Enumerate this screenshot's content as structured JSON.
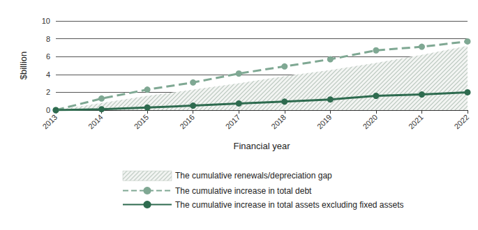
{
  "chart_data": {
    "type": "line",
    "x_label": "Financial year",
    "y_label": "$billion",
    "categories": [
      "2013",
      "2014",
      "2015",
      "2016",
      "2017",
      "2018",
      "2019",
      "2020",
      "2021",
      "2022"
    ],
    "ylim": [
      0,
      10
    ],
    "yticks": [
      0,
      2,
      4,
      6,
      8,
      10
    ],
    "grid": true,
    "legend": "bottom",
    "series": [
      {
        "name": "The cumulative renewals/depreciation gap",
        "type": "area",
        "color": "#b9c6bd",
        "marker": "none",
        "values": [
          0,
          0.8,
          1.6,
          2.3,
          3.0,
          3.8,
          4.5,
          5.3,
          6.2,
          7.2
        ]
      },
      {
        "name": "The cumulative increase in total debt",
        "type": "line",
        "color": "#7fa893",
        "marker": "circle",
        "line_style": "dashed",
        "values": [
          0,
          1.3,
          2.3,
          3.1,
          4.1,
          4.9,
          5.7,
          6.7,
          7.1,
          7.7
        ]
      },
      {
        "name": "The cumulative increase in total assets excluding fixed assets",
        "type": "line",
        "color": "#2e6b4f",
        "marker": "circle",
        "line_style": "solid",
        "values": [
          0,
          0.1,
          0.3,
          0.5,
          0.75,
          0.95,
          1.2,
          1.6,
          1.75,
          2.0
        ]
      }
    ]
  }
}
